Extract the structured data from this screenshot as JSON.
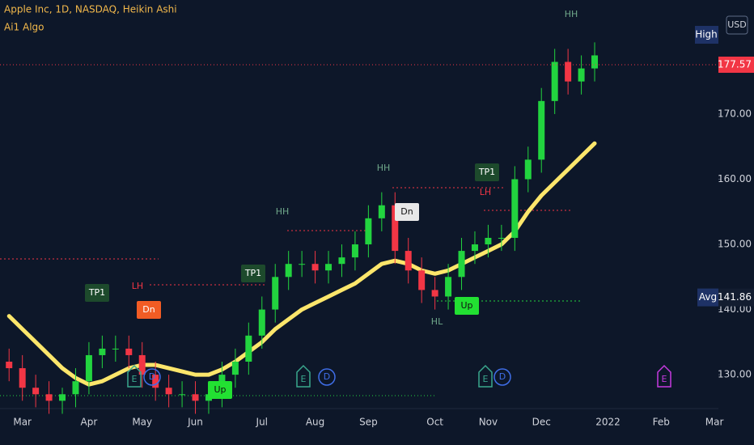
{
  "chart_data": {
    "type": "candlestick",
    "title": "Apple Inc, 1D, NASDAQ, Heikin Ashi",
    "subtitle": "Ai1 Algo",
    "categories": [
      null,
      "Mar",
      null,
      null,
      null,
      null,
      "Apr",
      null,
      null,
      null,
      "May",
      null,
      null,
      null,
      "Jun",
      null,
      null,
      null,
      null,
      "Jul",
      null,
      null,
      null,
      "Aug",
      null,
      null,
      null,
      "Sep",
      null,
      null,
      null,
      null,
      "Oct",
      null,
      null,
      null,
      "Nov",
      null,
      null,
      null,
      "Dec",
      null,
      null,
      null,
      null,
      "2022",
      null,
      null,
      null,
      "Feb",
      null,
      null,
      null,
      "Mar"
    ],
    "open": [
      132,
      131,
      128,
      127,
      126,
      127,
      129,
      133,
      134,
      134,
      133,
      130,
      128,
      127,
      127,
      126,
      127,
      130,
      132,
      136,
      140,
      145,
      147,
      147,
      146,
      147,
      148,
      150,
      154,
      156,
      149,
      146,
      143,
      142,
      145,
      149,
      150,
      151,
      151,
      160,
      163,
      172,
      178,
      175,
      177,
      null,
      null,
      null,
      null,
      null,
      null,
      null,
      null,
      null
    ],
    "high": [
      134,
      133,
      130,
      129,
      128,
      131,
      135,
      136,
      136,
      136,
      135,
      132,
      130,
      129,
      129,
      129,
      132,
      134,
      138,
      142,
      147,
      149,
      149,
      149,
      149,
      150,
      152,
      156,
      158,
      158,
      151,
      148,
      145,
      147,
      151,
      152,
      153,
      153,
      162,
      165,
      174,
      180,
      180,
      179,
      181,
      null,
      null,
      null,
      null,
      null,
      null,
      null,
      null,
      null
    ],
    "low": [
      129,
      126,
      125,
      124,
      124,
      125,
      127,
      131,
      132,
      131,
      128,
      126,
      125,
      125,
      124,
      124,
      125,
      128,
      130,
      134,
      138,
      143,
      145,
      144,
      144,
      145,
      146,
      148,
      152,
      147,
      144,
      141,
      140,
      140,
      143,
      147,
      148,
      149,
      149,
      158,
      161,
      170,
      173,
      173,
      175,
      null,
      null,
      null,
      null,
      null,
      null,
      null,
      null,
      null
    ],
    "close": [
      131,
      128,
      127,
      126,
      127,
      129,
      133,
      134,
      134,
      133,
      130,
      128,
      127,
      127,
      126,
      127,
      130,
      132,
      136,
      140,
      145,
      147,
      147,
      146,
      147,
      148,
      150,
      154,
      156,
      149,
      146,
      143,
      142,
      145,
      149,
      150,
      151,
      151,
      160,
      163,
      172,
      178,
      175,
      177,
      179,
      null,
      null,
      null,
      null,
      null,
      null,
      null,
      null,
      null
    ],
    "up_color": "#22d43f",
    "down_color": "#f23645",
    "ma": {
      "color": "#fce66b",
      "values": [
        139,
        137,
        135,
        133,
        131,
        129.5,
        128.5,
        129,
        130,
        131,
        131.5,
        131.5,
        131,
        130.5,
        130,
        130,
        130.8,
        132,
        133.5,
        135,
        137,
        138.5,
        140,
        141,
        142,
        143,
        144,
        145.5,
        147,
        147.5,
        147,
        146,
        145.5,
        146,
        147,
        148,
        149,
        150,
        152,
        155,
        157.5,
        159.5,
        161.5,
        163.5,
        165.5,
        null,
        null,
        null,
        null,
        null,
        null,
        null,
        null,
        null
      ]
    },
    "ylim": [
      124.8,
      187.5
    ],
    "yticks": [
      {
        "value": 130,
        "label": "130.00"
      },
      {
        "value": 140,
        "label": "140.00"
      },
      {
        "value": 150,
        "label": "150.00"
      },
      {
        "value": 160,
        "label": "160.00"
      },
      {
        "value": 170,
        "label": "170.00"
      }
    ],
    "price_line": {
      "value": 177.57,
      "label": "177.57",
      "color": "#f23645"
    },
    "avg_line": {
      "name": "Avg",
      "value": 141.86,
      "label": "141.86"
    },
    "high_label": "High",
    "currency": "USD",
    "annotations": [
      "HH",
      "HH",
      "HH",
      "LH",
      "LH",
      "HL",
      "TP1",
      "TP1",
      "TP1",
      "Dn",
      "Dn",
      "Up",
      "Up",
      "E",
      "E",
      "E",
      "E",
      "D",
      "D",
      "D"
    ]
  }
}
